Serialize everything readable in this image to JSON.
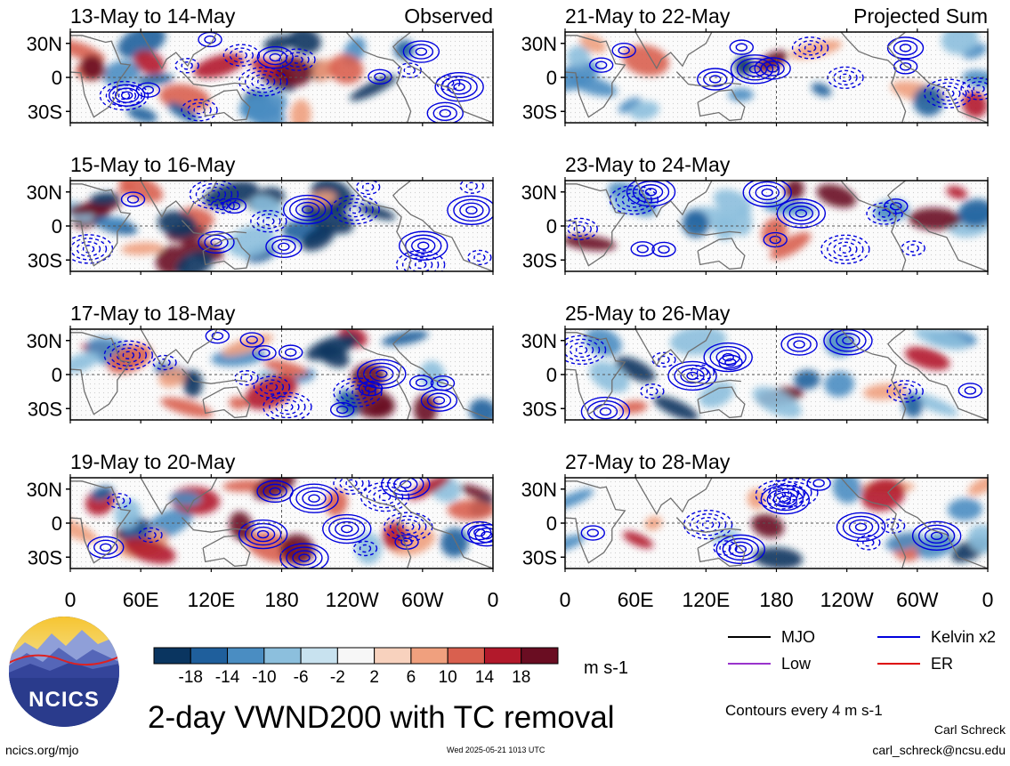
{
  "panels_left": [
    {
      "title": "13-May to 14-May",
      "label": "Observed"
    },
    {
      "title": "15-May to 16-May",
      "label": ""
    },
    {
      "title": "17-May to 18-May",
      "label": ""
    },
    {
      "title": "19-May to 20-May",
      "label": ""
    }
  ],
  "panels_right": [
    {
      "title": "21-May to 22-May",
      "label": "Projected Sum"
    },
    {
      "title": "23-May to 24-May",
      "label": ""
    },
    {
      "title": "25-May to 26-May",
      "label": ""
    },
    {
      "title": "27-May to 28-May",
      "label": ""
    }
  ],
  "lat_labels": [
    "30N",
    "0",
    "30S"
  ],
  "lon_labels": [
    "0",
    "60E",
    "120E",
    "180",
    "120W",
    "60W",
    "0"
  ],
  "colorbar": {
    "tick_labels": [
      "-18",
      "-14",
      "-10",
      "-6",
      "-2",
      "2",
      "6",
      "10",
      "14",
      "18"
    ],
    "units": "m s-1",
    "colors": [
      "#0a3560",
      "#1f5f9c",
      "#4a8dc2",
      "#8cbfdd",
      "#c8e2ef",
      "#f7f7f7",
      "#f8d2be",
      "#f0a07e",
      "#d9604f",
      "#b2192b",
      "#6a0d22"
    ]
  },
  "legend": {
    "items": [
      {
        "label": "MJO",
        "color": "#000000"
      },
      {
        "label": "Kelvin x2",
        "color": "#0000dd"
      },
      {
        "label": "Low",
        "color": "#9933cc"
      },
      {
        "label": "ER",
        "color": "#dd0000"
      }
    ],
    "contour_note": "Contours every 4 m s-1"
  },
  "main_title": "2-day VWND200 with TC removal",
  "logo_text": "NCICS",
  "footer": {
    "left": "ncics.org/mjo",
    "center": "Wed 2025-05-21 1013 UTC",
    "author": "Carl Schreck",
    "email": "carl_schreck@ncsu.edu"
  },
  "chart_data": {
    "type": "heatmap",
    "variable": "2-day VWND200 with TC removal",
    "units": "m s-1",
    "x_axis": {
      "ticks": [
        "0",
        "60E",
        "120E",
        "180",
        "120W",
        "60W",
        "0"
      ],
      "range_deg_east": [
        0,
        360
      ]
    },
    "y_axis": {
      "ticks": [
        "30N",
        "0",
        "30S"
      ],
      "range_deg": [
        -40,
        40
      ]
    },
    "color_levels": [
      -18,
      -14,
      -10,
      -6,
      -2,
      2,
      6,
      10,
      14,
      18
    ],
    "contour_interval": 4,
    "columns": [
      "Observed",
      "Projected Sum"
    ]
  }
}
